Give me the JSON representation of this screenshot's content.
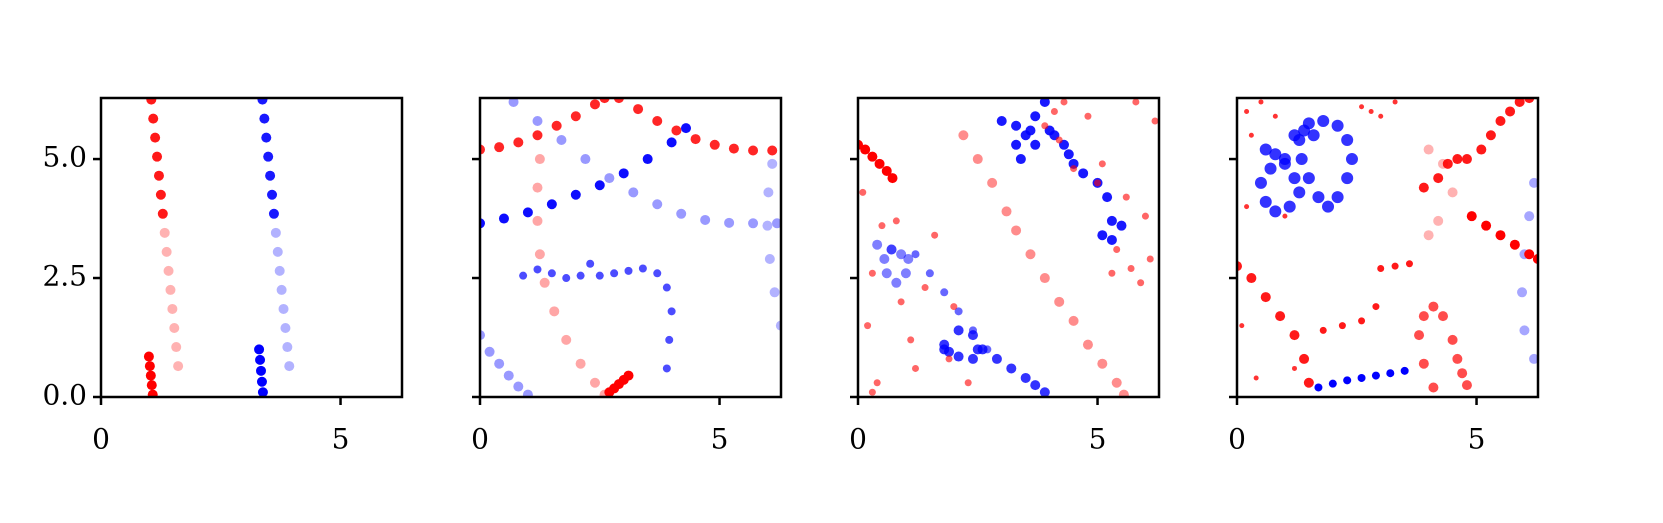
{
  "chart_data": [
    {
      "type": "scatter",
      "xlim": [
        0,
        6.283
      ],
      "ylim": [
        0,
        6.283
      ],
      "xticks": [
        0,
        5
      ],
      "yticks": [
        {
          "value": 0,
          "label": "0.0"
        },
        2.5,
        {
          "value": 5,
          "label": "5.0"
        }
      ],
      "series": [
        {
          "color": "#ff0000",
          "opacity": 0.9,
          "size": 5,
          "x": [
            1.05,
            1.09,
            1.13,
            1.17,
            1.21,
            1.25,
            1.29
          ],
          "values": [
            6.25,
            5.85,
            5.45,
            5.05,
            4.65,
            4.25,
            3.85
          ]
        },
        {
          "color": "#ff0000",
          "opacity": 0.3,
          "size": 5,
          "x": [
            1.33,
            1.37,
            1.41,
            1.45,
            1.49,
            1.53,
            1.57,
            1.61
          ],
          "values": [
            3.45,
            3.05,
            2.65,
            2.25,
            1.85,
            1.45,
            1.05,
            0.65
          ]
        },
        {
          "color": "#ff0000",
          "opacity": 1,
          "size": 5,
          "x": [
            1.0,
            1.02,
            1.04,
            1.06,
            1.08
          ],
          "values": [
            0.85,
            0.65,
            0.45,
            0.25,
            0.05
          ]
        },
        {
          "color": "#0000ff",
          "opacity": 0.9,
          "size": 5,
          "x": [
            3.37,
            3.41,
            3.45,
            3.49,
            3.53,
            3.57,
            3.61
          ],
          "values": [
            6.25,
            5.85,
            5.45,
            5.05,
            4.65,
            4.25,
            3.85
          ]
        },
        {
          "color": "#0000ff",
          "opacity": 0.3,
          "size": 5,
          "x": [
            3.65,
            3.69,
            3.73,
            3.77,
            3.81,
            3.85,
            3.89,
            3.93
          ],
          "values": [
            3.45,
            3.05,
            2.65,
            2.25,
            1.85,
            1.45,
            1.05,
            0.65
          ]
        },
        {
          "color": "#0000ff",
          "opacity": 1,
          "size": 5,
          "x": [
            3.3,
            3.32,
            3.34,
            3.36,
            3.38
          ],
          "values": [
            1.0,
            0.78,
            0.55,
            0.32,
            0.1
          ]
        }
      ]
    },
    {
      "type": "scatter",
      "xlim": [
        0,
        6.283
      ],
      "ylim": [
        0,
        6.283
      ],
      "xticks": [
        0,
        5
      ],
      "ytick_marks": [
        0,
        2.5,
        5
      ],
      "series": [
        {
          "color": "#ff0000",
          "opacity": 0.85,
          "size": 5,
          "x": [
            0,
            0.4,
            0.8,
            1.2,
            1.6,
            2.0,
            2.4,
            2.6
          ],
          "values": [
            5.2,
            5.25,
            5.35,
            5.5,
            5.7,
            5.9,
            6.15,
            6.28
          ]
        },
        {
          "color": "#ff0000",
          "opacity": 0.85,
          "size": 5,
          "x": [
            2.9,
            3.3,
            3.7,
            4.1,
            4.5,
            4.9,
            5.3,
            5.7,
            6.1
          ],
          "values": [
            6.28,
            6.05,
            5.8,
            5.6,
            5.42,
            5.3,
            5.22,
            5.18,
            5.18
          ]
        },
        {
          "color": "#0000ff",
          "opacity": 0.95,
          "size": 5,
          "x": [
            0,
            0.5,
            1.0,
            1.5,
            2.0,
            2.5,
            3.0,
            3.5,
            4.0,
            4.3
          ],
          "values": [
            3.65,
            3.75,
            3.88,
            4.05,
            4.25,
            4.45,
            4.7,
            5.0,
            5.35,
            5.65
          ]
        },
        {
          "color": "#0000ff",
          "opacity": 0.4,
          "size": 5,
          "x": [
            0.7,
            1.2,
            1.7,
            2.2,
            2.7,
            3.2,
            3.7,
            4.2,
            4.7,
            5.2,
            5.7,
            6.2
          ],
          "values": [
            6.2,
            5.8,
            5.4,
            5.0,
            4.6,
            4.3,
            4.05,
            3.85,
            3.72,
            3.66,
            3.65,
            3.65
          ]
        },
        {
          "color": "#ff0000",
          "opacity": 0.35,
          "size": 5,
          "x": [
            1.25,
            1.2,
            1.2,
            1.25,
            1.35,
            1.55,
            1.8,
            2.1,
            2.4,
            2.6
          ],
          "values": [
            5.0,
            4.4,
            3.7,
            3.0,
            2.4,
            1.8,
            1.2,
            0.7,
            0.3,
            0.05
          ]
        },
        {
          "color": "#ff0000",
          "opacity": 1,
          "size": 5,
          "x": [
            2.7,
            2.8,
            2.9,
            3.0,
            3.1
          ],
          "values": [
            0.1,
            0.18,
            0.27,
            0.36,
            0.45
          ]
        },
        {
          "color": "#0000ff",
          "opacity": 0.7,
          "size": 4,
          "x": [
            0.9,
            1.2,
            1.5,
            1.8,
            2.1,
            2.3,
            2.5,
            2.8,
            3.1,
            3.4,
            3.7,
            3.9,
            4.0,
            3.95,
            3.9
          ],
          "values": [
            2.55,
            2.68,
            2.6,
            2.5,
            2.55,
            2.8,
            2.55,
            2.6,
            2.65,
            2.7,
            2.6,
            2.3,
            1.8,
            1.2,
            0.6
          ]
        },
        {
          "color": "#0000ff",
          "opacity": 0.4,
          "size": 5,
          "x": [
            0,
            0.2,
            0.4,
            0.6,
            0.8,
            1.0
          ],
          "values": [
            1.3,
            0.95,
            0.7,
            0.45,
            0.22,
            0.05
          ]
        },
        {
          "color": "#0000ff",
          "opacity": 0.3,
          "size": 5,
          "x": [
            6.28,
            6.15,
            6.05,
            6.0,
            6.02,
            6.1
          ],
          "values": [
            1.5,
            2.2,
            2.9,
            3.6,
            4.3,
            4.9
          ]
        }
      ]
    },
    {
      "type": "scatter",
      "xlim": [
        0,
        6.283
      ],
      "ylim": [
        0,
        6.283
      ],
      "xticks": [
        0,
        5
      ],
      "ytick_marks": [
        0,
        2.5,
        5
      ],
      "series": [
        {
          "color": "#ff0000",
          "opacity": 1,
          "size": 5,
          "x": [
            0,
            0.15,
            0.3,
            0.45,
            0.6,
            0.72
          ],
          "values": [
            5.3,
            5.2,
            5.05,
            4.9,
            4.75,
            4.6
          ]
        },
        {
          "color": "#ff0000",
          "opacity": 0.45,
          "size": 5,
          "x": [
            2.2,
            2.5,
            2.8,
            3.1,
            3.3,
            3.6,
            3.9,
            4.2,
            4.5,
            4.8,
            5.1,
            5.4,
            5.55
          ],
          "values": [
            5.5,
            5.0,
            4.5,
            3.9,
            3.5,
            3.0,
            2.5,
            2.0,
            1.6,
            1.1,
            0.7,
            0.3,
            0.05
          ]
        },
        {
          "color": "#0000ff",
          "opacity": 0.5,
          "size": 5,
          "x": [
            0.4,
            0.7,
            0.9,
            1.05,
            1.0,
            0.8,
            0.6,
            0.55,
            0.7
          ],
          "values": [
            3.2,
            3.1,
            3.0,
            2.9,
            2.6,
            2.4,
            2.6,
            2.9,
            3.1
          ]
        },
        {
          "color": "#0000ff",
          "opacity": 0.6,
          "size": 4,
          "x": [
            1.2,
            1.5,
            1.8,
            2.1,
            2.4,
            2.7
          ],
          "values": [
            3.0,
            2.6,
            2.2,
            1.8,
            1.4,
            1.0
          ]
        },
        {
          "color": "#0000ff",
          "opacity": 0.8,
          "size": 5,
          "x": [
            1.8,
            2.1,
            2.4,
            2.5,
            2.4,
            2.1,
            1.9,
            1.8
          ],
          "values": [
            1.0,
            1.4,
            1.3,
            1.0,
            0.8,
            0.85,
            0.95,
            1.1
          ]
        },
        {
          "color": "#0000ff",
          "opacity": 0.8,
          "size": 5,
          "x": [
            2.6,
            2.9,
            3.2,
            3.5,
            3.7,
            3.9
          ],
          "values": [
            1.0,
            0.8,
            0.6,
            0.4,
            0.25,
            0.1
          ]
        },
        {
          "color": "#0000ff",
          "opacity": 0.9,
          "size": 5,
          "x": [
            3.0,
            3.3,
            3.5,
            3.7,
            3.9,
            4.0,
            3.7,
            3.4,
            3.3,
            3.6,
            4.1,
            4.3,
            4.4,
            4.5,
            4.7,
            5.0,
            5.2,
            5.3,
            5.1,
            5.3,
            5.5
          ],
          "values": [
            5.8,
            5.7,
            5.5,
            5.9,
            6.2,
            5.6,
            5.3,
            5.0,
            5.3,
            5.6,
            5.5,
            5.3,
            5.1,
            4.9,
            4.7,
            4.5,
            4.2,
            3.7,
            3.4,
            3.3,
            3.6
          ]
        },
        {
          "color": "#ff0000",
          "opacity": 0.6,
          "size": 3.5,
          "x": [
            0.1,
            0.5,
            0.3,
            0.9,
            0.2,
            1.4,
            1.1,
            1.6,
            0.4,
            1.9,
            0.3,
            1.2,
            2.3,
            0.8,
            2.0,
            3.9,
            4.2,
            4.5,
            4.1,
            4.3,
            5.1,
            5.6,
            6.0,
            5.4,
            5.9,
            5.7,
            6.1,
            6.2,
            5.8,
            4.8,
            5.0,
            5.3
          ],
          "values": [
            4.3,
            3.6,
            2.6,
            2.0,
            1.5,
            2.3,
            1.2,
            3.4,
            0.3,
            0.8,
            0.1,
            0.6,
            0.3,
            3.7,
            1.9,
            5.7,
            5.4,
            4.8,
            6.0,
            6.2,
            4.9,
            4.2,
            3.8,
            3.1,
            2.4,
            2.7,
            2.9,
            5.8,
            6.2,
            5.9,
            4.5,
            2.6
          ]
        }
      ]
    },
    {
      "type": "scatter",
      "xlim": [
        0,
        6.283
      ],
      "ylim": [
        0,
        6.283
      ],
      "xticks": [
        0,
        5
      ],
      "ytick_marks": [
        0,
        2.5,
        5
      ],
      "series": [
        {
          "color": "#0000ff",
          "opacity": 0.8,
          "size": 6,
          "x": [
            1.2,
            1.5,
            1.8,
            2.1,
            2.3,
            2.4,
            2.3,
            2.1,
            1.9,
            1.7,
            1.5,
            1.35,
            1.3,
            1.4,
            1.6
          ],
          "values": [
            5.5,
            5.75,
            5.8,
            5.7,
            5.4,
            5.0,
            4.6,
            4.2,
            4.0,
            4.2,
            4.6,
            5.0,
            5.4,
            5.6,
            5.5
          ]
        },
        {
          "color": "#0000ff",
          "opacity": 0.8,
          "size": 6,
          "x": [
            0.6,
            0.8,
            1.0,
            1.2,
            1.3,
            1.1,
            0.8,
            0.6,
            0.5,
            0.7,
            1.0
          ],
          "values": [
            5.2,
            5.1,
            4.9,
            4.6,
            4.3,
            4.0,
            3.9,
            4.1,
            4.5,
            4.8,
            5.0
          ]
        },
        {
          "color": "#0000ff",
          "opacity": 1,
          "size": 4,
          "x": [
            1.7,
            2.0,
            2.3,
            2.6,
            2.9,
            3.2,
            3.5
          ],
          "values": [
            0.2,
            0.28,
            0.35,
            0.4,
            0.45,
            0.5,
            0.55
          ]
        },
        {
          "color": "#0000ff",
          "opacity": 0.35,
          "size": 5,
          "x": [
            6.2,
            6.1,
            6.0,
            5.95,
            6.0,
            6.2
          ],
          "values": [
            4.5,
            3.8,
            3.0,
            2.2,
            1.4,
            0.8
          ]
        },
        {
          "color": "#ff0000",
          "opacity": 0.9,
          "size": 5,
          "x": [
            3.9,
            4.2,
            4.4,
            4.6,
            4.8,
            5.1,
            5.3,
            5.5,
            5.7,
            5.9,
            6.1
          ],
          "values": [
            4.4,
            4.6,
            4.9,
            5.0,
            5.0,
            5.2,
            5.5,
            5.8,
            6.0,
            6.2,
            6.28
          ]
        },
        {
          "color": "#ff0000",
          "opacity": 1,
          "size": 5,
          "x": [
            4.9,
            5.2,
            5.5,
            5.8,
            6.1,
            6.28
          ],
          "values": [
            3.8,
            3.6,
            3.4,
            3.2,
            3.0,
            2.9
          ]
        },
        {
          "color": "#ff0000",
          "opacity": 0.9,
          "size": 5,
          "x": [
            0,
            0.3,
            0.6,
            0.9,
            1.2,
            1.4,
            1.5
          ],
          "values": [
            2.75,
            2.5,
            2.1,
            1.7,
            1.3,
            0.8,
            0.3
          ]
        },
        {
          "color": "#ff0000",
          "opacity": 0.9,
          "size": 3.5,
          "x": [
            1.8,
            2.2,
            2.6,
            2.9,
            3.0,
            3.3,
            3.6
          ],
          "values": [
            1.4,
            1.5,
            1.6,
            1.9,
            2.7,
            2.75,
            2.8
          ]
        },
        {
          "color": "#ff0000",
          "opacity": 0.7,
          "size": 5,
          "x": [
            4.1,
            3.9,
            3.8,
            3.9,
            4.1,
            4.3,
            4.5,
            4.6,
            4.7,
            4.8
          ],
          "values": [
            0.2,
            0.7,
            1.3,
            1.7,
            1.9,
            1.7,
            1.2,
            0.8,
            0.5,
            0.25
          ]
        },
        {
          "color": "#ff0000",
          "opacity": 0.8,
          "size": 2.5,
          "x": [
            0.2,
            0.3,
            0.5,
            0.8,
            1.0,
            1.2,
            2.6,
            2.8,
            3.0,
            3.3,
            0.1,
            0.4,
            0.2
          ],
          "values": [
            6.0,
            5.5,
            6.2,
            5.9,
            3.8,
            0.6,
            6.1,
            6.0,
            5.9,
            6.2,
            1.5,
            0.4,
            4.0
          ]
        },
        {
          "color": "#ff0000",
          "opacity": 0.3,
          "size": 5,
          "x": [
            4.0,
            4.3,
            4.5,
            4.2,
            4.0
          ],
          "values": [
            5.2,
            4.9,
            4.3,
            3.7,
            3.4
          ]
        }
      ]
    }
  ]
}
